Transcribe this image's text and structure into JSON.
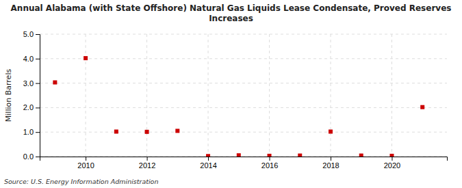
{
  "chart_data": {
    "type": "scatter",
    "title": "Annual Alabama (with State Offshore) Natural Gas Liquids Lease Condensate, Proved Reserves\nIncreases",
    "y_label": "Million Barrels",
    "annotations": [
      "Source: U.S. Energy Information Administration"
    ],
    "x": [
      2009,
      2010,
      2011,
      2012,
      2013,
      2014,
      2015,
      2016,
      2017,
      2018,
      2019,
      2020,
      2021
    ],
    "values": [
      3.03,
      4.02,
      1.02,
      1.01,
      1.05,
      0.02,
      0.05,
      0.03,
      0.04,
      1.02,
      0.04,
      0.03,
      2.02
    ],
    "color": "#cc0000",
    "marker": "square",
    "xlim": [
      2008.5,
      2021.8
    ],
    "xticks": [
      2010,
      2012,
      2014,
      2016,
      2018,
      2020
    ],
    "ylim": [
      0,
      5
    ],
    "yticks": [
      {
        "value": 0,
        "label": "0.0"
      },
      {
        "value": 1,
        "label": "1.0"
      },
      {
        "value": 2,
        "label": "2.0"
      },
      {
        "value": 3,
        "label": "3.0"
      },
      {
        "value": 4,
        "label": "4.0"
      },
      {
        "value": 5,
        "label": "5.0"
      }
    ],
    "grid": true
  }
}
